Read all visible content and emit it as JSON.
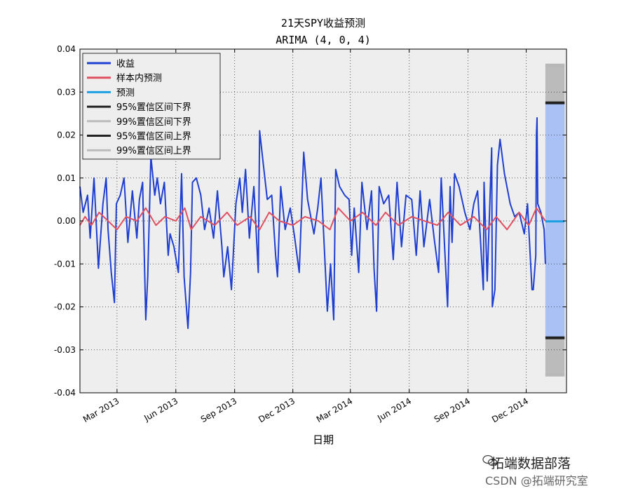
{
  "chart_data": {
    "type": "line",
    "title": "21天SPY收益预测",
    "subtitle": "ARIMA (4, 0, 4)",
    "xlabel": "日期",
    "ylabel": "",
    "ylim": [
      -0.04,
      0.04
    ],
    "x_range": [
      "2013-01-02",
      "2015-02-02"
    ],
    "y_ticks": [
      "0.04",
      "0.03",
      "0.02",
      "0.01",
      "0.00",
      "-0.01",
      "-0.02",
      "-0.03",
      "-0.04"
    ],
    "y_tick_values": [
      0.04,
      0.03,
      0.02,
      0.01,
      0.0,
      -0.01,
      -0.02,
      -0.03,
      -0.04
    ],
    "x_ticks": [
      {
        "label": "Mar 2013",
        "date": "2013-03-01"
      },
      {
        "label": "Jun 2013",
        "date": "2013-06-01"
      },
      {
        "label": "Sep 2013",
        "date": "2013-09-01"
      },
      {
        "label": "Dec 2013",
        "date": "2013-12-01"
      },
      {
        "label": "Mar 2014",
        "date": "2014-03-01"
      },
      {
        "label": "Jun 2014",
        "date": "2014-06-01"
      },
      {
        "label": "Sep 2014",
        "date": "2014-09-01"
      },
      {
        "label": "Dec 2014",
        "date": "2014-12-01"
      }
    ],
    "grid": true,
    "legend_position": "top-left",
    "colors": {
      "returns": "#1f3fd1",
      "in_sample": "#e05060",
      "forecast": "#1aa0e0",
      "ci95": "#222222",
      "ci99": "#bbbbbb",
      "band": "#a9c1f5",
      "background": "#eeeeee"
    },
    "forecast_window": {
      "start": "2014-12-31",
      "end": "2015-01-30",
      "ci95_lower": -0.0272,
      "ci95_upper": 0.0275,
      "ci99_lower": -0.0358,
      "ci99_upper": 0.0362,
      "forecast_value": -0.0001
    },
    "series": [
      {
        "name": "收益",
        "key": "returns",
        "points": [
          [
            "2013-01-02",
            0.008
          ],
          [
            "2013-01-07",
            0.002
          ],
          [
            "2013-01-14",
            0.006
          ],
          [
            "2013-01-18",
            -0.004
          ],
          [
            "2013-01-24",
            0.01
          ],
          [
            "2013-01-31",
            -0.011
          ],
          [
            "2013-02-07",
            0.004
          ],
          [
            "2013-02-12",
            0.01
          ],
          [
            "2013-02-15",
            -0.002
          ],
          [
            "2013-02-20",
            -0.012
          ],
          [
            "2013-02-25",
            -0.019
          ],
          [
            "2013-02-28",
            0.004
          ],
          [
            "2013-03-06",
            0.006
          ],
          [
            "2013-03-12",
            0.01
          ],
          [
            "2013-03-18",
            -0.005
          ],
          [
            "2013-03-25",
            0.007
          ],
          [
            "2013-04-01",
            -0.004
          ],
          [
            "2013-04-05",
            0.005
          ],
          [
            "2013-04-10",
            0.009
          ],
          [
            "2013-04-15",
            -0.023
          ],
          [
            "2013-04-18",
            -0.013
          ],
          [
            "2013-04-23",
            0.015
          ],
          [
            "2013-04-29",
            0.006
          ],
          [
            "2013-05-03",
            0.01
          ],
          [
            "2013-05-08",
            0.004
          ],
          [
            "2013-05-14",
            0.009
          ],
          [
            "2013-05-20",
            -0.008
          ],
          [
            "2013-05-23",
            -0.003
          ],
          [
            "2013-05-29",
            -0.006
          ],
          [
            "2013-06-05",
            -0.012
          ],
          [
            "2013-06-10",
            0.011
          ],
          [
            "2013-06-14",
            -0.013
          ],
          [
            "2013-06-20",
            -0.025
          ],
          [
            "2013-06-24",
            -0.012
          ],
          [
            "2013-06-27",
            0.009
          ],
          [
            "2013-07-03",
            0.01
          ],
          [
            "2013-07-10",
            0.006
          ],
          [
            "2013-07-16",
            -0.002
          ],
          [
            "2013-07-23",
            0.003
          ],
          [
            "2013-07-30",
            -0.004
          ],
          [
            "2013-08-05",
            0.007
          ],
          [
            "2013-08-12",
            -0.006
          ],
          [
            "2013-08-15",
            -0.013
          ],
          [
            "2013-08-21",
            -0.006
          ],
          [
            "2013-08-27",
            -0.016
          ],
          [
            "2013-09-03",
            0.004
          ],
          [
            "2013-09-09",
            0.01
          ],
          [
            "2013-09-13",
            0.002
          ],
          [
            "2013-09-18",
            0.012
          ],
          [
            "2013-09-24",
            -0.004
          ],
          [
            "2013-10-01",
            0.008
          ],
          [
            "2013-10-08",
            -0.012
          ],
          [
            "2013-10-10",
            0.021
          ],
          [
            "2013-10-16",
            0.013
          ],
          [
            "2013-10-22",
            0.005
          ],
          [
            "2013-10-29",
            0.006
          ],
          [
            "2013-11-04",
            -0.008
          ],
          [
            "2013-11-07",
            -0.013
          ],
          [
            "2013-11-12",
            0.008
          ],
          [
            "2013-11-19",
            -0.002
          ],
          [
            "2013-11-27",
            0.003
          ],
          [
            "2013-12-04",
            -0.004
          ],
          [
            "2013-12-11",
            -0.012
          ],
          [
            "2013-12-18",
            0.016
          ],
          [
            "2013-12-24",
            0.005
          ],
          [
            "2014-01-03",
            -0.003
          ],
          [
            "2014-01-09",
            0.003
          ],
          [
            "2014-01-14",
            0.01
          ],
          [
            "2014-01-24",
            -0.021
          ],
          [
            "2014-01-29",
            -0.01
          ],
          [
            "2014-02-03",
            -0.023
          ],
          [
            "2014-02-06",
            0.012
          ],
          [
            "2014-02-12",
            0.008
          ],
          [
            "2014-02-20",
            0.006
          ],
          [
            "2014-02-27",
            0.005
          ],
          [
            "2014-03-03",
            -0.008
          ],
          [
            "2014-03-07",
            0.003
          ],
          [
            "2014-03-14",
            -0.012
          ],
          [
            "2014-03-19",
            0.009
          ],
          [
            "2014-03-27",
            -0.002
          ],
          [
            "2014-04-03",
            0.007
          ],
          [
            "2014-04-07",
            -0.011
          ],
          [
            "2014-04-11",
            -0.021
          ],
          [
            "2014-04-15",
            0.008
          ],
          [
            "2014-04-22",
            0.004
          ],
          [
            "2014-04-30",
            0.006
          ],
          [
            "2014-05-07",
            -0.009
          ],
          [
            "2014-05-13",
            0.009
          ],
          [
            "2014-05-20",
            -0.006
          ],
          [
            "2014-05-27",
            0.006
          ],
          [
            "2014-06-05",
            0.005
          ],
          [
            "2014-06-12",
            -0.008
          ],
          [
            "2014-06-18",
            0.007
          ],
          [
            "2014-06-24",
            -0.006
          ],
          [
            "2014-07-03",
            0.005
          ],
          [
            "2014-07-10",
            -0.004
          ],
          [
            "2014-07-17",
            -0.012
          ],
          [
            "2014-07-21",
            0.01
          ],
          [
            "2014-07-31",
            -0.02
          ],
          [
            "2014-08-04",
            0.008
          ],
          [
            "2014-08-07",
            -0.005
          ],
          [
            "2014-08-11",
            0.011
          ],
          [
            "2014-08-18",
            0.008
          ],
          [
            "2014-08-27",
            0.002
          ],
          [
            "2014-09-04",
            -0.002
          ],
          [
            "2014-09-10",
            0.004
          ],
          [
            "2014-09-16",
            0.007
          ],
          [
            "2014-09-25",
            -0.016
          ],
          [
            "2014-09-26",
            0.009
          ],
          [
            "2014-10-01",
            -0.014
          ],
          [
            "2014-10-08",
            0.017
          ],
          [
            "2014-10-09",
            -0.02
          ],
          [
            "2014-10-13",
            -0.016
          ],
          [
            "2014-10-17",
            0.013
          ],
          [
            "2014-10-21",
            0.019
          ],
          [
            "2014-10-28",
            0.011
          ],
          [
            "2014-11-06",
            0.004
          ],
          [
            "2014-11-13",
            0.001
          ],
          [
            "2014-11-20",
            0.002
          ],
          [
            "2014-11-28",
            -0.003
          ],
          [
            "2014-12-03",
            0.004
          ],
          [
            "2014-12-10",
            -0.016
          ],
          [
            "2014-12-12",
            -0.016
          ],
          [
            "2014-12-16",
            -0.008
          ],
          [
            "2014-12-17",
            0.02
          ],
          [
            "2014-12-18",
            0.024
          ],
          [
            "2014-12-19",
            0.004
          ],
          [
            "2014-12-24",
            0.002
          ],
          [
            "2014-12-29",
            -0.002
          ],
          [
            "2014-12-31",
            -0.01
          ]
        ]
      },
      {
        "name": "样本内预测",
        "key": "in_sample",
        "points": [
          [
            "2013-01-02",
            -0.001
          ],
          [
            "2013-01-10",
            0.001
          ],
          [
            "2013-01-20",
            -0.001
          ],
          [
            "2013-02-01",
            0.002
          ],
          [
            "2013-02-15",
            0.0
          ],
          [
            "2013-03-01",
            -0.002
          ],
          [
            "2013-03-15",
            0.001
          ],
          [
            "2013-04-01",
            0.0
          ],
          [
            "2013-04-15",
            0.003
          ],
          [
            "2013-05-01",
            -0.001
          ],
          [
            "2013-05-15",
            0.001
          ],
          [
            "2013-06-01",
            0.0
          ],
          [
            "2013-06-15",
            0.003
          ],
          [
            "2013-06-25",
            -0.002
          ],
          [
            "2013-07-10",
            0.001
          ],
          [
            "2013-08-01",
            -0.001
          ],
          [
            "2013-08-20",
            0.002
          ],
          [
            "2013-09-05",
            -0.001
          ],
          [
            "2013-09-25",
            0.001
          ],
          [
            "2013-10-10",
            -0.002
          ],
          [
            "2013-10-25",
            0.002
          ],
          [
            "2013-11-10",
            0.0
          ],
          [
            "2013-12-01",
            -0.001
          ],
          [
            "2013-12-20",
            0.001
          ],
          [
            "2014-01-10",
            0.0
          ],
          [
            "2014-01-28",
            -0.002
          ],
          [
            "2014-02-10",
            0.003
          ],
          [
            "2014-03-01",
            0.0
          ],
          [
            "2014-03-20",
            0.002
          ],
          [
            "2014-04-10",
            -0.001
          ],
          [
            "2014-04-25",
            0.002
          ],
          [
            "2014-05-15",
            -0.001
          ],
          [
            "2014-06-05",
            0.001
          ],
          [
            "2014-06-25",
            0.0
          ],
          [
            "2014-07-15",
            -0.001
          ],
          [
            "2014-08-01",
            0.002
          ],
          [
            "2014-08-20",
            -0.001
          ],
          [
            "2014-09-10",
            0.001
          ],
          [
            "2014-09-30",
            -0.002
          ],
          [
            "2014-10-15",
            0.001
          ],
          [
            "2014-11-01",
            -0.002
          ],
          [
            "2014-11-20",
            0.002
          ],
          [
            "2014-12-05",
            -0.001
          ],
          [
            "2014-12-17",
            0.003
          ],
          [
            "2014-12-31",
            0.0
          ]
        ]
      },
      {
        "name": "预测",
        "key": "forecast"
      },
      {
        "name": "95%置信区间下界",
        "key": "ci95_lower"
      },
      {
        "name": "99%置信区间下界",
        "key": "ci99_lower"
      },
      {
        "name": "95%置信区间上界",
        "key": "ci95_upper"
      },
      {
        "name": "99%置信区间上界",
        "key": "ci99_upper"
      }
    ]
  },
  "watermark": {
    "line1": "拓端数据部落",
    "line2": "CSDN @拓端研究室"
  }
}
